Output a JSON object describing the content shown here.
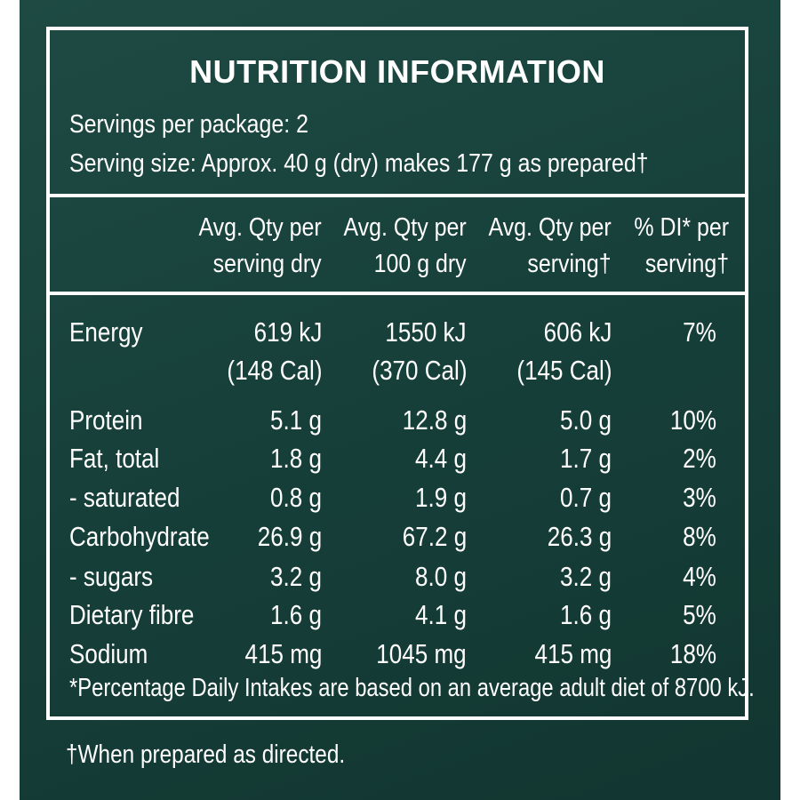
{
  "title": "NUTRITION INFORMATION",
  "servings_per_package": "Servings per package: 2",
  "serving_size": "Serving size: Approx. 40 g (dry) makes 177 g as prepared†",
  "columns": [
    {
      "line1": "Avg. Qty per",
      "line2": "serving dry"
    },
    {
      "line1": "Avg. Qty per",
      "line2": "100 g dry"
    },
    {
      "line1": "Avg. Qty per",
      "line2": "serving†"
    },
    {
      "line1": "% DI* per",
      "line2": "serving†"
    }
  ],
  "rows": [
    {
      "label": "Energy",
      "values": [
        "619 kJ",
        "1550 kJ",
        "606 kJ",
        "7%"
      ],
      "sub": [
        "(148 Cal)",
        "(370 Cal)",
        "(145 Cal)",
        ""
      ]
    },
    {
      "label": "Protein",
      "values": [
        "5.1 g",
        "12.8 g",
        "5.0 g",
        "10%"
      ]
    },
    {
      "label": "Fat, total",
      "values": [
        "1.8 g",
        "4.4 g",
        "1.7 g",
        "2%"
      ]
    },
    {
      "label": "- saturated",
      "values": [
        "0.8 g",
        "1.9 g",
        "0.7 g",
        "3%"
      ]
    },
    {
      "label": "Carbohydrate",
      "values": [
        "26.9 g",
        "67.2 g",
        "26.3 g",
        "8%"
      ]
    },
    {
      "label": "- sugars",
      "values": [
        "3.2 g",
        "8.0 g",
        "3.2 g",
        "4%"
      ]
    },
    {
      "label": "Dietary fibre",
      "values": [
        "1.6 g",
        "4.1 g",
        "1.6 g",
        "5%"
      ]
    },
    {
      "label": "Sodium",
      "values": [
        "415 mg",
        "1045 mg",
        "415 mg",
        "18%"
      ]
    }
  ],
  "footnote": "*Percentage Daily Intakes are based on an average adult diet of 8700 kJ.",
  "prepared_note": "†When prepared as directed.",
  "colors": {
    "background": "#17403a",
    "text": "#ffffff"
  }
}
